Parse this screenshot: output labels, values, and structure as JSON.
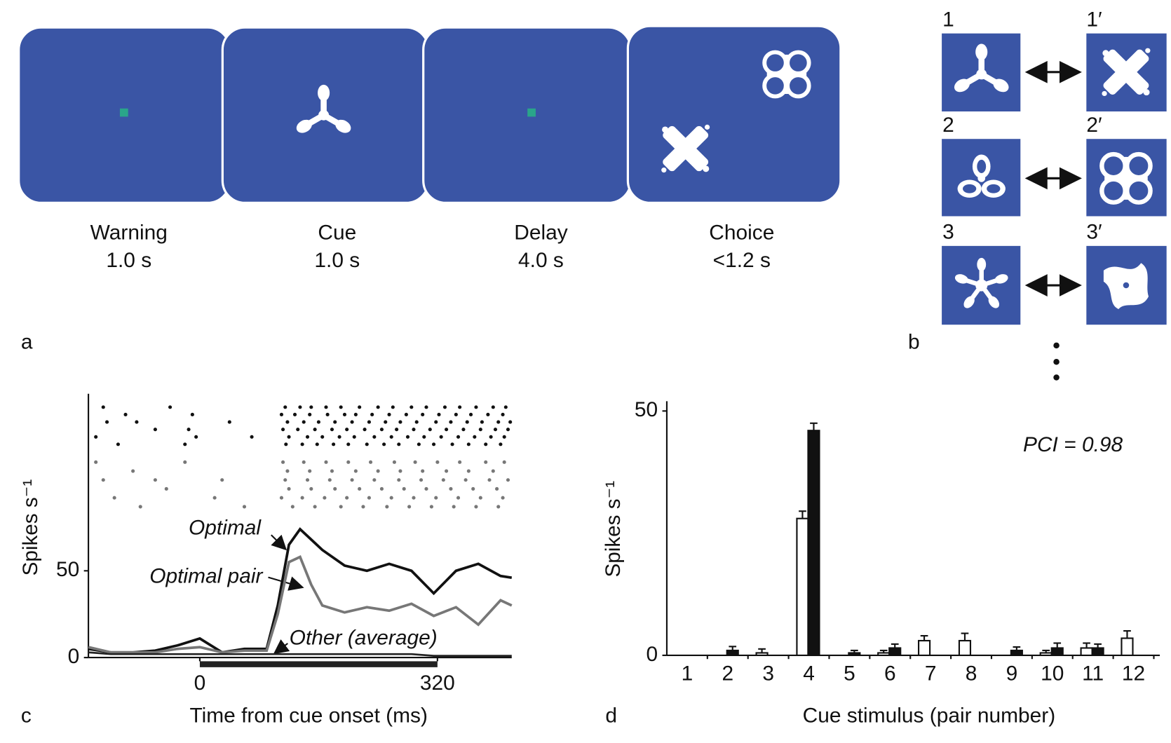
{
  "panel_a": {
    "label": "a",
    "steps": [
      {
        "name": "Warning",
        "duration": "1.0 s"
      },
      {
        "name": "Cue",
        "duration": "1.0 s"
      },
      {
        "name": "Delay",
        "duration": "4.0 s"
      },
      {
        "name": "Choice",
        "duration": "<1.2 s"
      }
    ]
  },
  "panel_b": {
    "label": "b",
    "pairs": [
      {
        "left": "1",
        "right": "1′"
      },
      {
        "left": "2",
        "right": "2′"
      },
      {
        "left": "3",
        "right": "3′"
      }
    ]
  },
  "chart_data": [
    {
      "type": "line",
      "panel_label": "c",
      "x_label": "Time from cue onset (ms)",
      "y_label": "Spikes s⁻¹",
      "xlim": [
        -150,
        420
      ],
      "ylim": [
        0,
        152
      ],
      "xticks": [
        0,
        320
      ],
      "yticks": [
        0,
        50
      ],
      "x": [
        -150,
        -120,
        -90,
        -60,
        -30,
        0,
        30,
        60,
        90,
        105,
        120,
        135,
        150,
        165,
        195,
        225,
        255,
        285,
        315,
        345,
        375,
        405,
        420
      ],
      "series": [
        {
          "name": "Optimal",
          "color": "#111111",
          "values": [
            5,
            3,
            3,
            4,
            7,
            11,
            3,
            5,
            5,
            30,
            65,
            74,
            68,
            62,
            53,
            50,
            54,
            50,
            37,
            50,
            54,
            47,
            46
          ]
        },
        {
          "name": "Optimal pair",
          "color": "#777777",
          "values": [
            6,
            3,
            3,
            3,
            5,
            6,
            3,
            4,
            4,
            25,
            55,
            58,
            42,
            30,
            26,
            29,
            27,
            31,
            24,
            29,
            19,
            33,
            30
          ]
        },
        {
          "name": "Other (average)",
          "color": "#222222",
          "values": [
            3,
            2,
            2,
            2,
            2,
            2,
            2,
            2,
            2,
            2,
            2,
            2,
            2,
            2,
            2,
            2,
            2,
            2,
            1,
            1,
            1,
            1,
            1
          ]
        }
      ],
      "cue_period": [
        0,
        320
      ],
      "raster": [
        {
          "color": "#111111",
          "rows": [
            [
              -130,
              -40,
              115,
              135,
              150,
              170,
              190,
              215,
              240,
              260,
              285,
              305,
              330,
              350,
              372,
              395,
              412
            ],
            [
              -100,
              -10,
              110,
              128,
              148,
              172,
              195,
              210,
              232,
              255,
              278,
              300,
              322,
              345,
              365,
              388,
              408
            ],
            [
              -125,
              -85,
              40,
              118,
              140,
              160,
              182,
              205,
              228,
              250,
              270,
              292,
              318,
              338,
              360,
              380,
              402,
              418
            ],
            [
              -60,
              -15,
              112,
              132,
              155,
              178,
              198,
              222,
              245,
              265,
              288,
              310,
              332,
              355,
              378,
              398,
              415
            ],
            [
              -140,
              -5,
              70,
              120,
              145,
              165,
              188,
              208,
              235,
              258,
              280,
              302,
              325,
              348,
              370,
              392,
              410
            ],
            [
              -110,
              -20,
              116,
              138,
              158,
              180,
              200,
              225,
              248,
              268,
              295,
              315,
              340,
              362,
              385,
              405
            ]
          ]
        },
        {
          "color": "#777777",
          "rows": [
            [
              -140,
              -20,
              112,
              140,
              170,
              200,
              230,
              262,
              290,
              320,
              350,
              385,
              410
            ],
            [
              -90,
              118,
              148,
              178,
              210,
              240,
              270,
              300,
              332,
              362,
              395
            ],
            [
              -130,
              -60,
              30,
              115,
              145,
              175,
              205,
              235,
              268,
              298,
              328,
              358,
              390,
              415
            ],
            [
              -45,
              120,
              150,
              182,
              215,
              245,
              275,
              305,
              338,
              368,
              400
            ],
            [
              -115,
              20,
              110,
              138,
              168,
              198,
              228,
              258,
              288,
              318,
              348,
              378,
              408
            ],
            [
              -80,
              60,
              125,
              155,
              190,
              220,
              252,
              282,
              312,
              342,
              372,
              402
            ]
          ]
        }
      ]
    },
    {
      "type": "bar",
      "panel_label": "d",
      "x_label": "Cue stimulus (pair number)",
      "y_label": "Spikes s⁻¹",
      "annotation": "PCI = 0.98",
      "categories": [
        "1",
        "2",
        "3",
        "4",
        "5",
        "6",
        "7",
        "8",
        "9",
        "10",
        "11",
        "12"
      ],
      "ylim": [
        0,
        52
      ],
      "yticks": [
        0,
        50
      ],
      "series": [
        {
          "color": "#ffffff",
          "values": [
            0,
            0,
            0.5,
            28,
            0,
            0.5,
            3,
            3,
            0,
            0.5,
            1.5,
            3.5
          ],
          "errors": [
            0,
            0,
            0.8,
            1.5,
            0,
            0.5,
            1,
            1.5,
            0,
            0.5,
            1,
            1.5
          ]
        },
        {
          "color": "#111111",
          "values": [
            0,
            1,
            0,
            46,
            0.5,
            1.5,
            0,
            0,
            1,
            1.5,
            1.5,
            0
          ],
          "errors": [
            0,
            0.8,
            0,
            1.5,
            0.5,
            0.8,
            0,
            0,
            0.7,
            1,
            0.8,
            0
          ]
        }
      ]
    }
  ]
}
